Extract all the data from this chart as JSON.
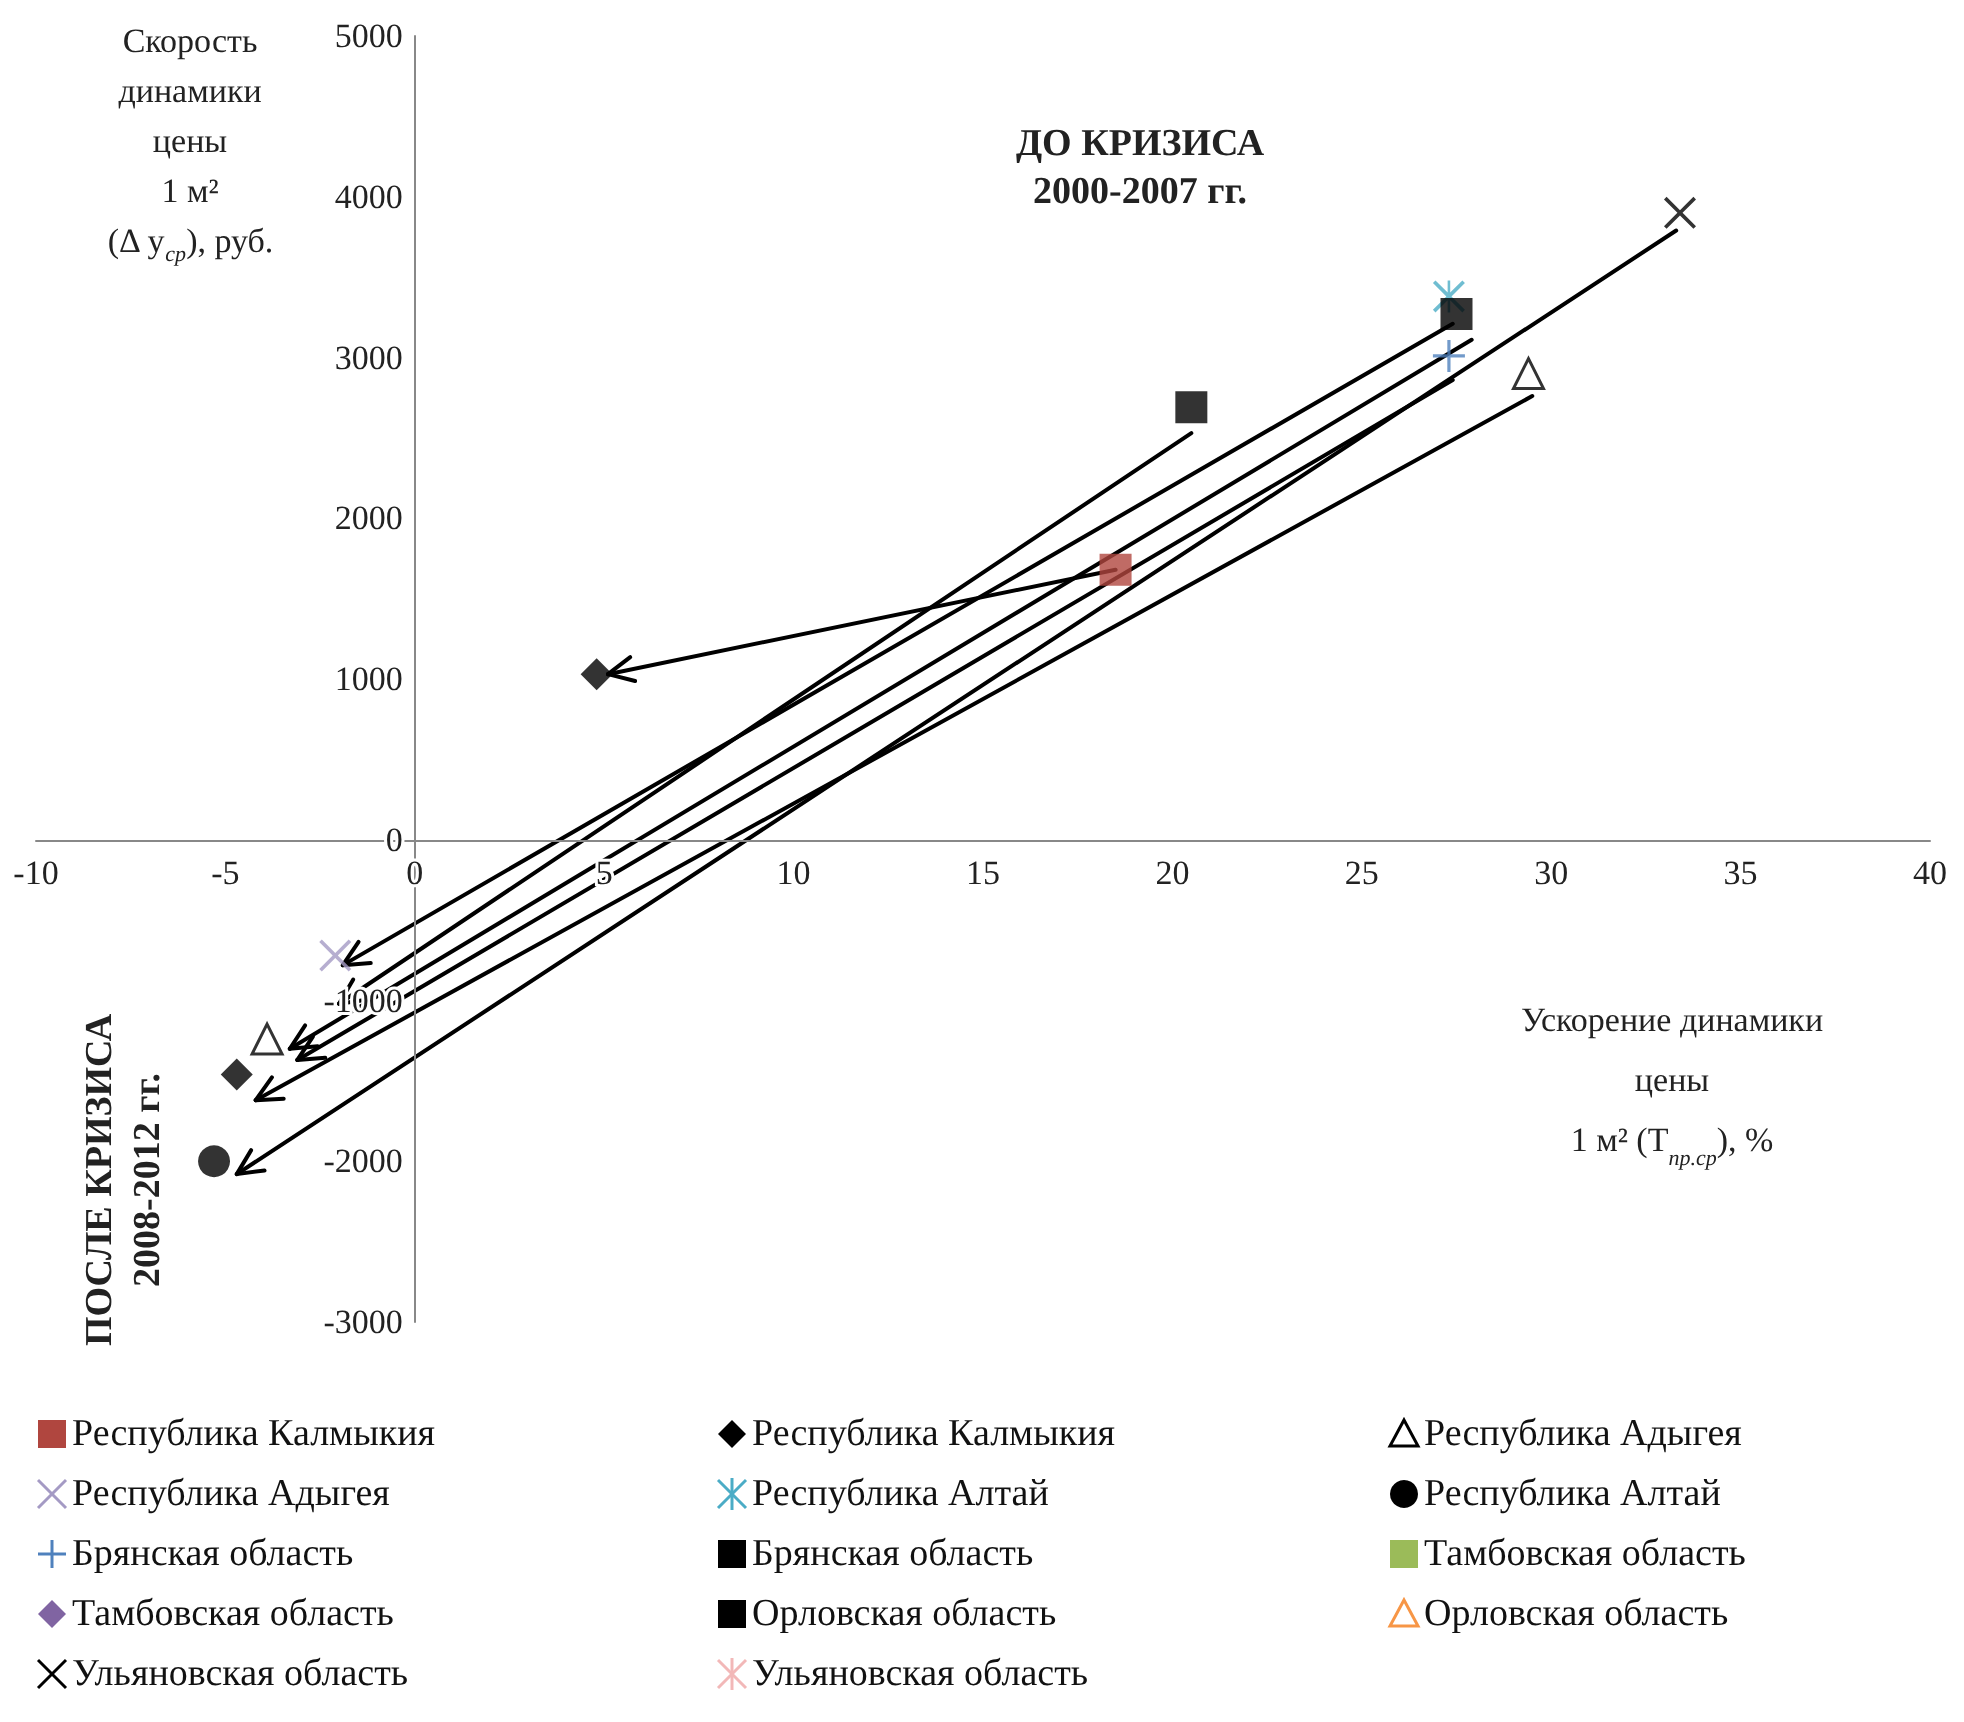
{
  "chart_data": {
    "type": "scatter",
    "ylabel": "Скорость\nдинамики\nцены\n1 м²\n(Δ y$_{ср}$), руб.",
    "xlabel": "Ускорение динамики\nцены\n1 м² (T$_{пр.ср}$), %",
    "annotations": [
      "ДО КРИЗИСА\n2000-2007 гг.",
      "ПОСЛЕ КРИЗИСА\n2008-2012 гг."
    ],
    "xlim": [
      -10,
      40
    ],
    "xticks": [
      -10,
      -5,
      0,
      5,
      10,
      15,
      20,
      25,
      30,
      35,
      40
    ],
    "ylim": [
      -3000,
      5000
    ],
    "yticks": [
      -3000,
      -2000,
      -1000,
      0,
      1000,
      2000,
      3000,
      4000,
      5000
    ],
    "legend": "bottom",
    "series": [
      {
        "type": "line",
        "color": "#000000",
        "x": [
          18.5,
          5.1
        ],
        "values": [
          1680,
          1030
        ]
      },
      {
        "type": "line",
        "color": "#000000",
        "x": [
          20.5,
          -2.0
        ],
        "values": [
          2530,
          -1020
        ]
      },
      {
        "type": "line",
        "color": "#000000",
        "x": [
          27.4,
          -1.9
        ],
        "values": [
          3210,
          -780
        ]
      },
      {
        "type": "line",
        "color": "#000000",
        "x": [
          27.9,
          -3.3
        ],
        "values": [
          3110,
          -1300
        ]
      },
      {
        "type": "line",
        "color": "#000000",
        "x": [
          27.4,
          -3.1
        ],
        "values": [
          2860,
          -1370
        ]
      },
      {
        "type": "line",
        "color": "#000000",
        "x": [
          29.5,
          -4.2
        ],
        "values": [
          2760,
          -1620
        ]
      },
      {
        "type": "line",
        "color": "#000000",
        "x": [
          33.3,
          -4.7
        ],
        "values": [
          3790,
          -2080
        ]
      },
      {
        "name": "Республика Калмыкия",
        "marker": "square",
        "color": "#b0463f",
        "x": [
          18.5
        ],
        "values": [
          1680
        ]
      },
      {
        "name": "Республика Калмыкия",
        "marker": "diamond",
        "color": "#000000",
        "x": [
          4.8,
          -4.7
        ],
        "values": [
          1030,
          -1460
        ]
      },
      {
        "name": "Республика Адыгея",
        "marker": "triangle",
        "color": "#000000",
        "x": [
          29.4,
          -3.9
        ],
        "values": [
          2900,
          -1240
        ]
      },
      {
        "name": "Республика Адыгея",
        "marker": "cross",
        "color": "#a49ac4",
        "x": [
          -2.1
        ],
        "values": [
          -720
        ]
      },
      {
        "name": "Республика Алтай",
        "marker": "star",
        "color": "#4bacc6",
        "x": [
          27.3
        ],
        "values": [
          3380
        ]
      },
      {
        "name": "Республика Алтай",
        "marker": "circle",
        "color": "#000000",
        "x": [
          -5.3
        ],
        "values": [
          -2000
        ]
      },
      {
        "name": "Брянская область",
        "marker": "plus",
        "color": "#4f81bd",
        "x": [
          27.3
        ],
        "values": [
          3010
        ]
      },
      {
        "name": "Брянская область",
        "marker": "square",
        "color": "#000000",
        "x": [
          27.5
        ],
        "values": [
          3270
        ]
      },
      {
        "name": "Тамбовская область",
        "marker": "square",
        "color": "#9bbb59"
      },
      {
        "name": "Тамбовская область",
        "marker": "diamond",
        "color": "#8064a2"
      },
      {
        "name": "Орловская область",
        "marker": "square",
        "color": "#000000",
        "x": [
          20.5
        ],
        "values": [
          2690
        ]
      },
      {
        "name": "Орловская область",
        "marker": "triangle",
        "color": "#f79646"
      },
      {
        "name": "Ульяновская область",
        "marker": "cross",
        "color": "#000000",
        "x": [
          33.4
        ],
        "values": [
          3900
        ]
      },
      {
        "name": "Ульяновская область",
        "marker": "star",
        "color": "#f2b8b8"
      }
    ]
  }
}
